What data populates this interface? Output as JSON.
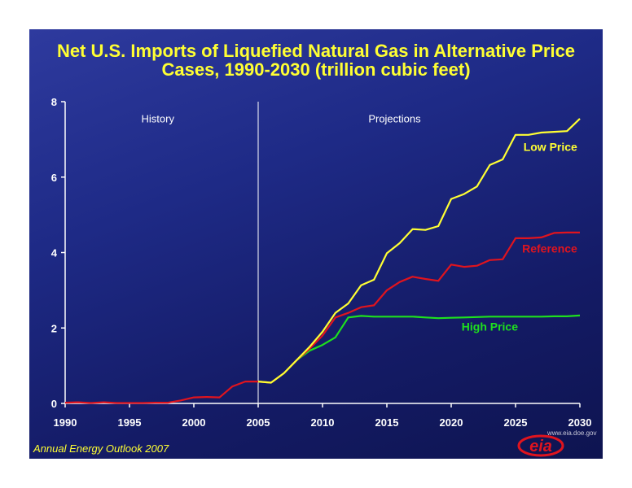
{
  "chart_data": {
    "type": "line",
    "title": "Net U.S. Imports of Liquefied Natural Gas in Alternative Price Cases, 1990-2030 (trillion cubic feet)",
    "xlabel": "",
    "ylabel": "",
    "xlim": [
      1990,
      2030
    ],
    "ylim": [
      0,
      8
    ],
    "x_ticks": [
      1990,
      1995,
      2000,
      2005,
      2010,
      2015,
      2020,
      2025,
      2030
    ],
    "y_ticks": [
      0,
      2,
      4,
      6,
      8
    ],
    "grid": false,
    "divider_year": 2005,
    "region_labels": {
      "history": "History",
      "projections": "Projections"
    },
    "history": {
      "color": "#e0141e",
      "x": [
        1990,
        1991,
        1992,
        1993,
        1994,
        1995,
        1996,
        1997,
        1998,
        1999,
        2000,
        2001,
        2002,
        2003,
        2004,
        2005
      ],
      "values": [
        0.02,
        0.03,
        0.01,
        0.03,
        0.01,
        0.01,
        0.01,
        0.02,
        0.02,
        0.08,
        0.16,
        0.17,
        0.16,
        0.45,
        0.58,
        0.58
      ]
    },
    "x": [
      2006,
      2007,
      2008,
      2009,
      2010,
      2011,
      2012,
      2013,
      2014,
      2015,
      2016,
      2017,
      2018,
      2019,
      2020,
      2021,
      2022,
      2023,
      2024,
      2025,
      2026,
      2027,
      2028,
      2029,
      2030
    ],
    "series": [
      {
        "name": "Low Price",
        "color": "#ffff33",
        "values": [
          0.55,
          0.8,
          1.15,
          1.5,
          1.9,
          2.4,
          2.65,
          3.13,
          3.28,
          3.98,
          4.25,
          4.62,
          4.6,
          4.7,
          5.42,
          5.55,
          5.75,
          6.32,
          6.47,
          7.12,
          7.12,
          7.18,
          7.2,
          7.22,
          7.55
        ]
      },
      {
        "name": "Reference",
        "color": "#e0141e",
        "values": [
          0.55,
          0.8,
          1.15,
          1.45,
          1.8,
          2.28,
          2.4,
          2.55,
          2.6,
          3.0,
          3.22,
          3.36,
          3.3,
          3.25,
          3.68,
          3.62,
          3.65,
          3.8,
          3.82,
          4.38,
          4.38,
          4.4,
          4.52,
          4.53,
          4.53
        ]
      },
      {
        "name": "High Price",
        "color": "#1ee01e",
        "values": [
          0.55,
          0.8,
          1.15,
          1.4,
          1.55,
          1.75,
          2.28,
          2.32,
          2.3,
          2.3,
          2.3,
          2.3,
          2.28,
          2.26,
          2.27,
          2.28,
          2.29,
          2.3,
          2.3,
          2.3,
          2.3,
          2.3,
          2.31,
          2.31,
          2.33
        ]
      }
    ]
  },
  "footer": {
    "source": "Annual Energy Outlook 2007",
    "logo_text": "eia",
    "logo_url_text": "www.eia.doe.gov"
  },
  "colors": {
    "title": "#ffff33",
    "axis": "#ffffff",
    "background": "#1e2a86"
  }
}
